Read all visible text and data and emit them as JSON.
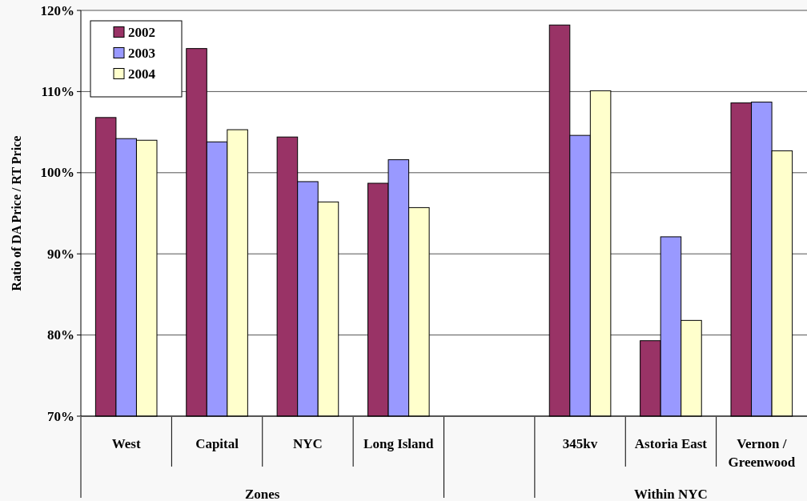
{
  "chart_data": {
    "type": "bar",
    "ylabel": "Ratio of DA Price / RT Price",
    "categories": [
      "West",
      "Capital",
      "NYC",
      "Long Island",
      null,
      "345kv",
      "Astoria East",
      "Vernon / Greenwood"
    ],
    "series": [
      {
        "name": "2002",
        "color": "#993366",
        "values": [
          106.8,
          115.3,
          104.4,
          98.7,
          null,
          118.2,
          79.3,
          108.6
        ]
      },
      {
        "name": "2003",
        "color": "#9999ff",
        "values": [
          104.2,
          103.8,
          98.9,
          101.6,
          null,
          104.6,
          92.1,
          108.7
        ]
      },
      {
        "name": "2004",
        "color": "#ffffcc",
        "values": [
          104.0,
          105.3,
          96.4,
          95.7,
          null,
          110.1,
          81.8,
          102.7
        ]
      }
    ],
    "ylim": [
      70,
      120
    ],
    "yticks": [
      {
        "value": 70,
        "label": "70%"
      },
      {
        "value": 80,
        "label": "80%"
      },
      {
        "value": 90,
        "label": "90%"
      },
      {
        "value": 100,
        "label": "100%"
      },
      {
        "value": 110,
        "label": "110%"
      },
      {
        "value": 120,
        "label": "120%"
      }
    ],
    "grid": "y",
    "legend": "top left",
    "annotations": [
      "Zones",
      "Within NYC"
    ]
  }
}
